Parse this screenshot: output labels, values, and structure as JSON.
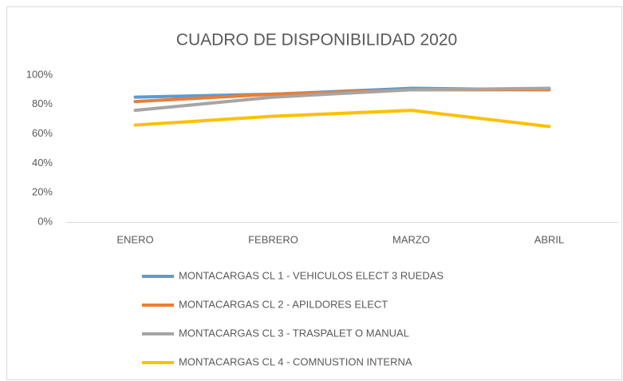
{
  "chart_data": {
    "type": "line",
    "title": "CUADRO DE DISPONIBILIDAD 2020",
    "categories": [
      "ENERO",
      "FEBRERO",
      "MARZO",
      "ABRIL"
    ],
    "series": [
      {
        "name": "MONTACARGAS CL 1 - VEHICULOS ELECT 3 RUEDAS",
        "color": "#5b9bd5",
        "values": [
          85,
          87,
          91,
          90
        ]
      },
      {
        "name": "MONTACARGAS CL 2 - APILDORES ELECT",
        "color": "#ed7d31",
        "values": [
          82,
          87,
          90,
          90
        ]
      },
      {
        "name": "MONTACARGAS CL 3 - TRASPALET O MANUAL",
        "color": "#a5a5a5",
        "values": [
          76,
          85,
          90,
          91
        ]
      },
      {
        "name": "MONTACARGAS CL 4 - COMNUSTION INTERNA",
        "color": "#ffc000",
        "values": [
          66,
          72,
          76,
          65
        ]
      }
    ],
    "ylim": [
      0,
      100
    ],
    "yticks": [
      {
        "value": 0,
        "label": "0%"
      },
      {
        "value": 20,
        "label": "20%"
      },
      {
        "value": 40,
        "label": "40%"
      },
      {
        "value": 60,
        "label": "60%"
      },
      {
        "value": 80,
        "label": "80%"
      },
      {
        "value": 100,
        "label": "100%"
      }
    ],
    "grid": false,
    "legend": "bottom"
  }
}
